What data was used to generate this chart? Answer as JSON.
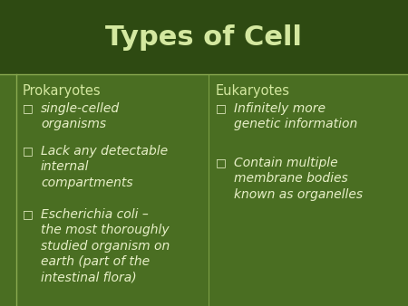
{
  "title": "Types of Cell",
  "title_color": "#d4e8a0",
  "title_fontsize": 22,
  "bg_color": "#3d5c1e",
  "title_area_color": "#2e4a12",
  "left_header": "Prokaryotes",
  "right_header": "Eukaryotes",
  "header_color": "#d4e8a0",
  "header_fontsize": 10.5,
  "bullet_color": "#e8f0c8",
  "bullet_fontsize": 10,
  "bullet_symbol": "□",
  "left_bullets": [
    "single-celled\norganisms",
    "Lack any detectable\ninternal\ncompartments",
    "Escherichia coli –\nthe most thoroughly\nstudied organism on\nearth (part of the\nintestinal flora)"
  ],
  "right_bullets": [
    "Infinitely more\ngenetic information",
    "Contain multiple\nmembrane bodies\nknown as organelles"
  ],
  "divider_h_color": "#8aaa50",
  "divider_v_color": "#8aaa50",
  "content_bg": "#4a6e22"
}
